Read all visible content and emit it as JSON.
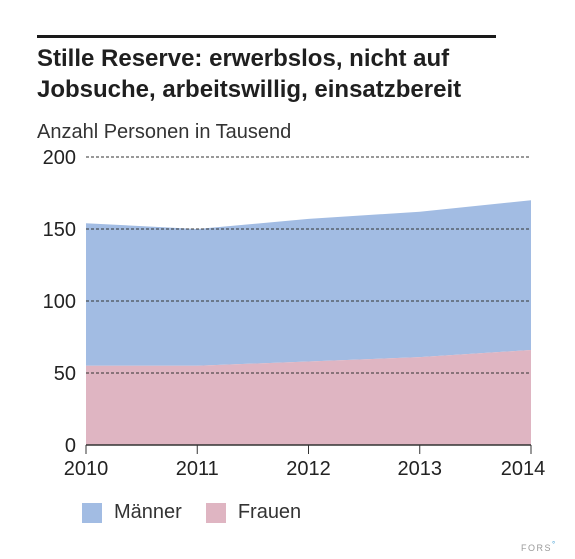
{
  "title": "Stille Reserve: erwerbslos, nicht auf Jobsuche, arbeitswillig, einsatzbereit",
  "subtitle": "Anzahl Personen in Tausend",
  "logo": {
    "text": "FORS",
    "dot": "°"
  },
  "colors": {
    "maenner": "#a2bce3",
    "frauen": "#dfb5c2",
    "axis": "#333333",
    "grid": "#333333"
  },
  "chart_data": {
    "type": "area",
    "stacked": true,
    "x": [
      2010,
      2011,
      2012,
      2013,
      2014
    ],
    "x_tick_labels": [
      "2010",
      "2011",
      "2012",
      "2013",
      "2014"
    ],
    "y_ticks": [
      0,
      50,
      100,
      150,
      200
    ],
    "y_tick_labels": [
      "0",
      "50",
      "100",
      "150",
      "200"
    ],
    "ylim": [
      0,
      200
    ],
    "grid": true,
    "legend_position": "bottom-left",
    "series": [
      {
        "name": "Frauen",
        "values": [
          55,
          55,
          58,
          61,
          66
        ],
        "color": "#dfb5c2"
      },
      {
        "name": "Männer",
        "values": [
          99,
          95,
          99,
          101,
          104
        ],
        "color": "#a2bce3"
      }
    ]
  },
  "legend": [
    {
      "label": "Männer",
      "color": "#a2bce3"
    },
    {
      "label": "Frauen",
      "color": "#dfb5c2"
    }
  ]
}
